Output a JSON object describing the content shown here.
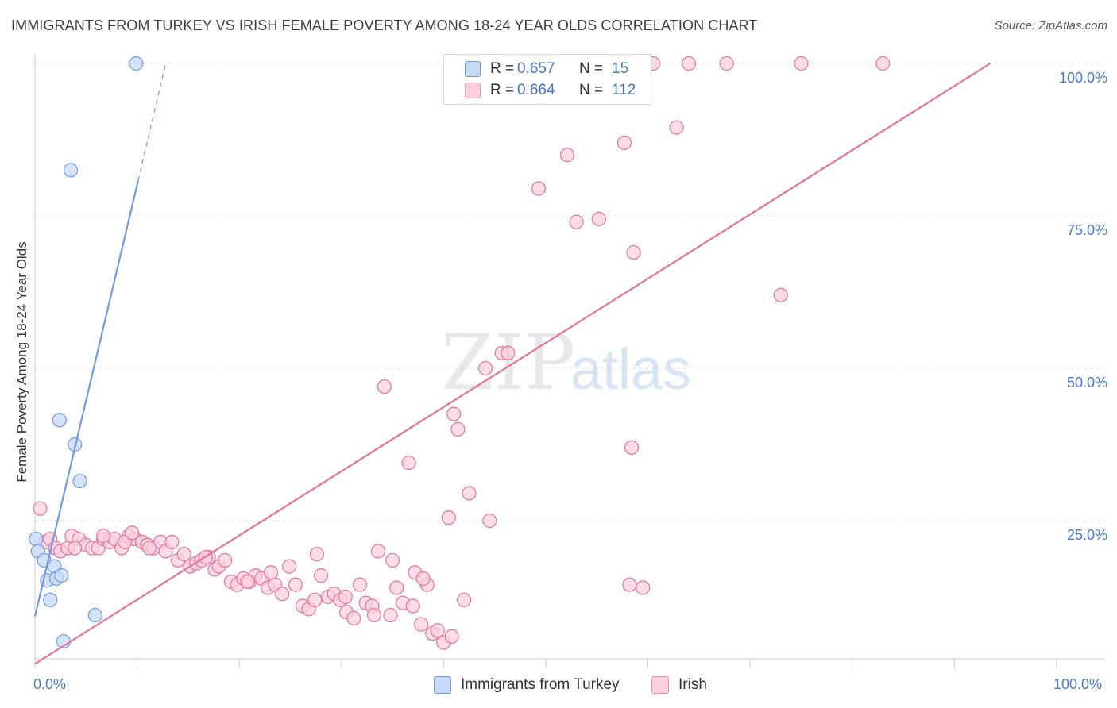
{
  "title": "IMMIGRANTS FROM TURKEY VS IRISH FEMALE POVERTY AMONG 18-24 YEAR OLDS CORRELATION CHART",
  "source": "Source: ZipAtlas.com",
  "watermark": {
    "zip": "ZIP",
    "atlas": "atlas"
  },
  "legend_top": {
    "rows": [
      {
        "r_label": "R =",
        "r_value": "0.657",
        "n_label": "N =",
        "n_value": "15",
        "color": "#a9c4f5",
        "border": "#6f9ae0"
      },
      {
        "r_label": "R =",
        "r_value": "0.664",
        "n_label": "N =",
        "n_value": "112",
        "color": "#f9c2d3",
        "border": "#ec8cab"
      }
    ]
  },
  "legend_bottom": [
    {
      "label": "Immigrants from Turkey",
      "color": "#c5d9f8",
      "border": "#6f9ae0"
    },
    {
      "label": "Irish",
      "color": "#fbd0dd",
      "border": "#ec8cab"
    }
  ],
  "chart_data": {
    "type": "scatter",
    "title": "IMMIGRANTS FROM TURKEY VS IRISH FEMALE POVERTY AMONG 18-24 YEAR OLDS CORRELATION CHART",
    "xlabel": "",
    "ylabel": "Female Poverty Among 18-24 Year Olds",
    "xlim": [
      0,
      100
    ],
    "ylim": [
      0,
      100
    ],
    "x_tick_labels": [
      "0.0%",
      "100.0%"
    ],
    "y_tick_labels": [
      "100.0%",
      "75.0%",
      "50.0%",
      "25.0%"
    ],
    "y_ticks": [
      100,
      75,
      50,
      25
    ],
    "grid": true,
    "legend": "top-center",
    "series": [
      {
        "name": "Immigrants from Turkey",
        "color": "#6f9ae0",
        "fill": "#c5d9f8",
        "r": 0.657,
        "n": 15,
        "trend": {
          "x0": 0,
          "y0": 9.3,
          "x1": 10.1,
          "y1": 80.8,
          "dash_to_x": 12.8,
          "dash_to_y": 100
        },
        "points": [
          [
            0.1,
            22.0
          ],
          [
            0.3,
            20.0
          ],
          [
            0.9,
            18.5
          ],
          [
            1.2,
            15.2
          ],
          [
            1.5,
            12.0
          ],
          [
            1.9,
            17.5
          ],
          [
            2.1,
            15.5
          ],
          [
            2.6,
            16.0
          ],
          [
            2.4,
            41.5
          ],
          [
            2.8,
            5.2
          ],
          [
            3.9,
            37.5
          ],
          [
            4.4,
            31.5
          ],
          [
            3.5,
            82.5
          ],
          [
            5.9,
            9.5
          ],
          [
            9.9,
            100.0
          ]
        ]
      },
      {
        "name": "Irish",
        "color": "#e37399",
        "fill": "#fbd0dd",
        "r": 0.664,
        "n": 112,
        "trend": {
          "x0": 0,
          "y0": 1.5,
          "x1": 93.5,
          "y1": 100
        },
        "points": [
          [
            0.5,
            27.0
          ],
          [
            1.0,
            21.5
          ],
          [
            1.5,
            22.0
          ],
          [
            2.0,
            20.5
          ],
          [
            2.5,
            20.0
          ],
          [
            3.2,
            20.5
          ],
          [
            3.6,
            22.5
          ],
          [
            4.3,
            22.0
          ],
          [
            5.0,
            21.0
          ],
          [
            5.6,
            20.5
          ],
          [
            6.2,
            20.5
          ],
          [
            6.7,
            22.0
          ],
          [
            7.3,
            21.5
          ],
          [
            7.8,
            22.0
          ],
          [
            8.5,
            20.5
          ],
          [
            9.2,
            22.5
          ],
          [
            9.8,
            22.0
          ],
          [
            10.5,
            21.5
          ],
          [
            11.0,
            21.0
          ],
          [
            11.6,
            20.5
          ],
          [
            12.3,
            21.5
          ],
          [
            12.8,
            20.0
          ],
          [
            13.4,
            21.5
          ],
          [
            14.0,
            18.5
          ],
          [
            14.6,
            19.5
          ],
          [
            15.2,
            17.5
          ],
          [
            15.8,
            18.0
          ],
          [
            16.3,
            18.5
          ],
          [
            17.0,
            19.0
          ],
          [
            17.6,
            17.0
          ],
          [
            18.0,
            17.5
          ],
          [
            18.6,
            18.5
          ],
          [
            19.2,
            15.0
          ],
          [
            19.8,
            14.5
          ],
          [
            20.4,
            15.5
          ],
          [
            21.0,
            15.0
          ],
          [
            21.6,
            16.0
          ],
          [
            22.2,
            15.5
          ],
          [
            22.8,
            14.0
          ],
          [
            23.5,
            14.5
          ],
          [
            24.2,
            13.0
          ],
          [
            24.9,
            17.5
          ],
          [
            25.5,
            14.5
          ],
          [
            26.2,
            11.0
          ],
          [
            26.8,
            10.5
          ],
          [
            27.4,
            12.0
          ],
          [
            28.0,
            16.0
          ],
          [
            28.7,
            12.5
          ],
          [
            29.3,
            13.0
          ],
          [
            29.9,
            12.0
          ],
          [
            30.5,
            10.0
          ],
          [
            31.2,
            9.0
          ],
          [
            31.8,
            14.5
          ],
          [
            32.4,
            11.5
          ],
          [
            33.0,
            11.0
          ],
          [
            33.6,
            20.0
          ],
          [
            34.2,
            47.0
          ],
          [
            34.8,
            9.5
          ],
          [
            35.4,
            14.0
          ],
          [
            36.0,
            11.5
          ],
          [
            36.6,
            34.5
          ],
          [
            37.2,
            16.5
          ],
          [
            37.8,
            8.0
          ],
          [
            38.4,
            14.5
          ],
          [
            38.9,
            6.5
          ],
          [
            39.4,
            7.0
          ],
          [
            40.0,
            5.0
          ],
          [
            40.5,
            25.5
          ],
          [
            41.0,
            42.5
          ],
          [
            41.4,
            40.0
          ],
          [
            42.0,
            12.0
          ],
          [
            42.5,
            29.5
          ],
          [
            43.3,
            100.0
          ],
          [
            44.1,
            50.0
          ],
          [
            44.5,
            25.0
          ],
          [
            45.7,
            52.5
          ],
          [
            46.3,
            52.5
          ],
          [
            47.5,
            100.0
          ],
          [
            49.3,
            79.5
          ],
          [
            50.0,
            100.0
          ],
          [
            51.1,
            100.0
          ],
          [
            52.1,
            85.0
          ],
          [
            53.0,
            74.0
          ],
          [
            55.2,
            74.5
          ],
          [
            56.3,
            100.0
          ],
          [
            57.7,
            87.0
          ],
          [
            58.2,
            14.5
          ],
          [
            58.4,
            37.0
          ],
          [
            58.6,
            69.0
          ],
          [
            59.5,
            14.0
          ],
          [
            60.5,
            100.0
          ],
          [
            62.8,
            89.5
          ],
          [
            64.0,
            100.0
          ],
          [
            67.7,
            100.0
          ],
          [
            73.0,
            62.0
          ],
          [
            75.0,
            100.0
          ],
          [
            83.0,
            100.0
          ],
          [
            3.9,
            20.5
          ],
          [
            6.7,
            22.5
          ],
          [
            8.8,
            21.5
          ],
          [
            11.2,
            20.5
          ],
          [
            16.7,
            19.0
          ],
          [
            20.8,
            15.0
          ],
          [
            23.1,
            16.5
          ],
          [
            27.6,
            19.5
          ],
          [
            30.4,
            12.5
          ],
          [
            33.2,
            9.5
          ],
          [
            35.0,
            18.5
          ],
          [
            37.0,
            11.0
          ],
          [
            38.0,
            15.5
          ],
          [
            40.8,
            6.0
          ],
          [
            9.5,
            23.0
          ]
        ]
      }
    ]
  }
}
